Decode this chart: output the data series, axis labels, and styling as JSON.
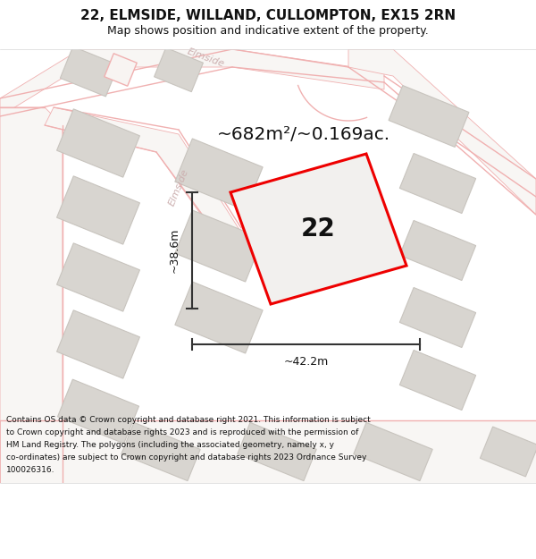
{
  "title": "22, ELMSIDE, WILLAND, CULLOMPTON, EX15 2RN",
  "subtitle": "Map shows position and indicative extent of the property.",
  "footer_lines": [
    "Contains OS data © Crown copyright and database right 2021. This information is subject",
    "to Crown copyright and database rights 2023 and is reproduced with the permission of",
    "HM Land Registry. The polygons (including the associated geometry, namely x, y",
    "co-ordinates) are subject to Crown copyright and database rights 2023 Ordnance Survey",
    "100026316."
  ],
  "area_label": "~682m²/~0.169ac.",
  "dim_vertical": "~38.6m",
  "dim_horizontal": "~42.2m",
  "property_number": "22",
  "bg_color": "#f2f0ee",
  "property_edge_color": "#ee0000",
  "property_face_color": "#f2f0ee",
  "building_face_color": "#d8d5d0",
  "building_edge_color": "#c8c4be",
  "road_line_color": "#f0b0b0",
  "road_face_color": "#f8f6f4",
  "dim_line_color": "#333333",
  "text_color": "#111111",
  "road_label_color": "#ccb0b0"
}
